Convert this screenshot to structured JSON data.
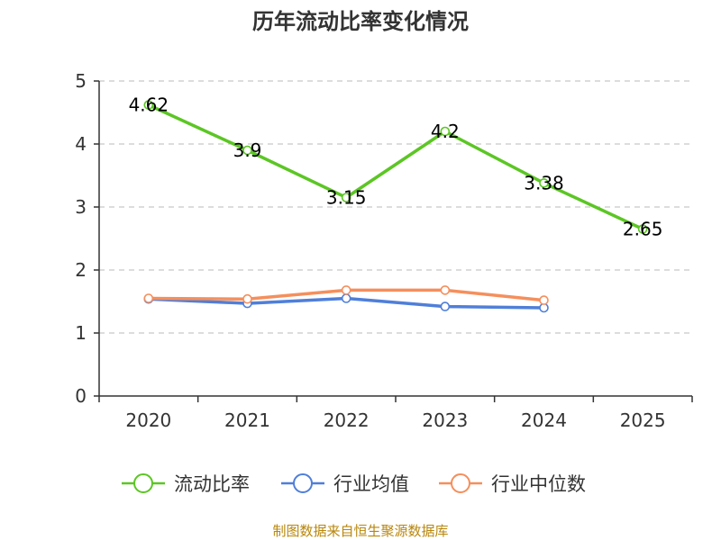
{
  "chart_data": {
    "type": "line",
    "title": "历年流动比率变化情况",
    "categories": [
      "2020",
      "2021",
      "2022",
      "2023",
      "2024",
      "2025"
    ],
    "ylim": [
      0,
      5
    ],
    "yticks": [
      0,
      1,
      2,
      3,
      4,
      5
    ],
    "grid": true,
    "legend_position": "bottom",
    "series": [
      {
        "name": "流动比率",
        "color": "#5cc624",
        "values": [
          4.62,
          3.9,
          3.15,
          4.2,
          3.38,
          2.65
        ],
        "labels": [
          "4.62",
          "3.9",
          "3.15",
          "4.2",
          "3.38",
          "2.65"
        ]
      },
      {
        "name": "行业均值",
        "color": "#4f7fd9",
        "values": [
          1.54,
          1.47,
          1.55,
          1.42,
          1.4,
          null
        ]
      },
      {
        "name": "行业中位数",
        "color": "#f58f5c",
        "values": [
          1.55,
          1.54,
          1.68,
          1.68,
          1.52,
          null
        ]
      }
    ],
    "source": "制图数据来自恒生聚源数据库"
  }
}
